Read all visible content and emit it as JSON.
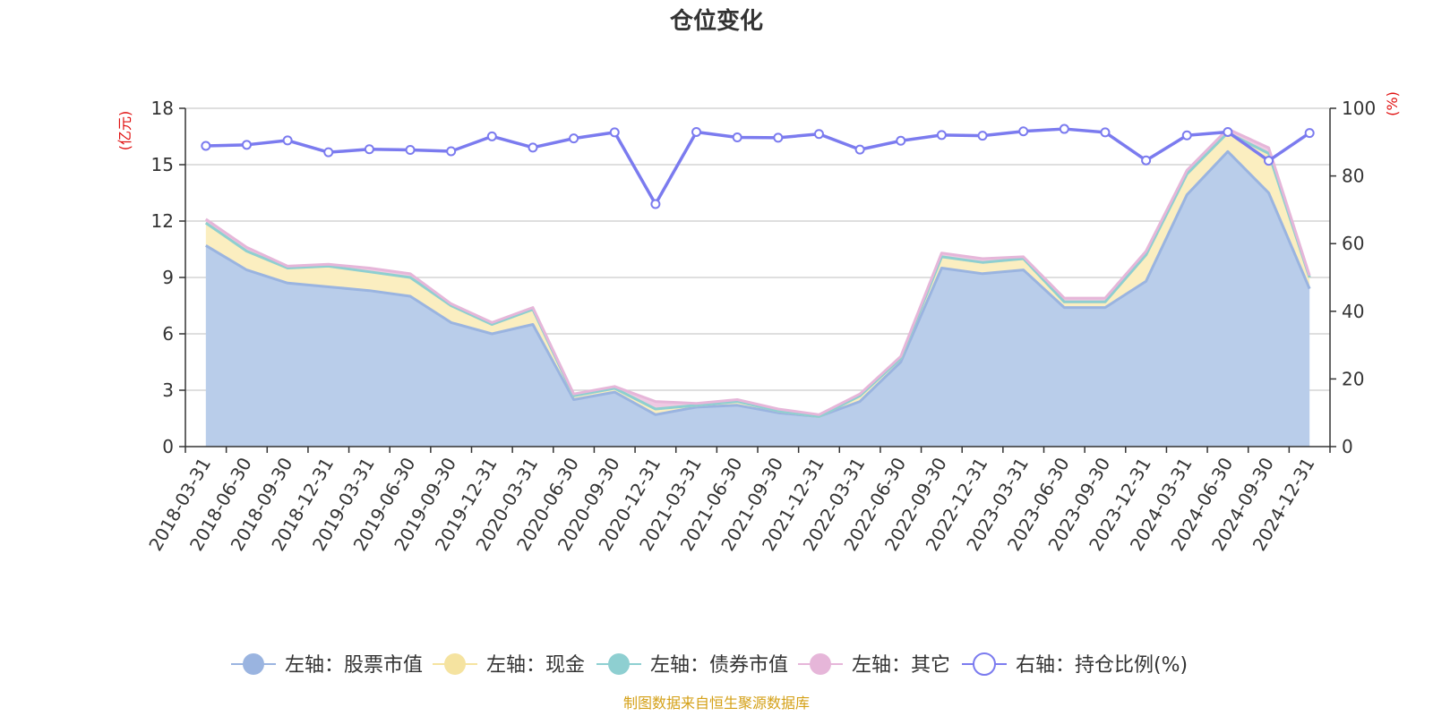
{
  "chart_data": {
    "type": "area",
    "title": "仓位变化",
    "source": "制图数据来自恒生聚源数据库",
    "left_axis": {
      "unit": "(亿元)",
      "ticks": [
        0,
        3,
        6,
        9,
        12,
        15,
        18
      ],
      "range": [
        0,
        18
      ]
    },
    "right_axis": {
      "unit": "(%)",
      "ticks": [
        0,
        20,
        40,
        60,
        80,
        100
      ],
      "range": [
        0,
        100
      ]
    },
    "categories": [
      "2018-03-31",
      "2018-06-30",
      "2018-09-30",
      "2018-12-31",
      "2019-03-31",
      "2019-06-30",
      "2019-09-30",
      "2019-12-31",
      "2020-03-31",
      "2020-06-30",
      "2020-09-30",
      "2020-12-31",
      "2021-03-31",
      "2021-06-30",
      "2021-09-30",
      "2021-12-31",
      "2022-03-31",
      "2022-06-30",
      "2022-09-30",
      "2022-12-31",
      "2023-03-31",
      "2023-06-30",
      "2023-09-30",
      "2023-12-31",
      "2024-03-31",
      "2024-06-30",
      "2024-09-30",
      "2024-12-31"
    ],
    "series": [
      {
        "name": "左轴：股票市值",
        "axis": "left",
        "type": "area",
        "color": "#9ab4e0",
        "fill": "#b9cdea",
        "values": [
          10.7,
          9.4,
          8.7,
          8.5,
          8.3,
          8.0,
          6.6,
          6.0,
          6.5,
          2.5,
          2.9,
          1.7,
          2.1,
          2.2,
          1.8,
          1.6,
          2.4,
          4.5,
          9.5,
          9.2,
          9.4,
          7.4,
          7.4,
          8.8,
          13.4,
          15.7,
          13.5,
          8.4
        ]
      },
      {
        "name": "左轴：现金",
        "axis": "left",
        "type": "area",
        "color": "#f5e3a0",
        "fill": "#fbeec0",
        "values": [
          1.2,
          1.0,
          0.8,
          1.1,
          1.0,
          1.0,
          0.9,
          0.5,
          0.8,
          0.2,
          0.2,
          0.3,
          0.1,
          0.2,
          0.1,
          0.0,
          0.3,
          0.2,
          0.6,
          0.6,
          0.6,
          0.3,
          0.3,
          1.4,
          1.1,
          1.0,
          2.1,
          0.6
        ]
      },
      {
        "name": "左轴：债券市值",
        "axis": "left",
        "type": "area",
        "color": "#8ecfd1",
        "fill": "#a8dcdd",
        "values": [
          0,
          0,
          0,
          0,
          0,
          0,
          0,
          0,
          0,
          0,
          0,
          0,
          0,
          0,
          0,
          0,
          0,
          0,
          0,
          0,
          0,
          0,
          0,
          0,
          0,
          0,
          0,
          0
        ]
      },
      {
        "name": "左轴：其它",
        "axis": "left",
        "type": "area",
        "color": "#e6b6d9",
        "fill": "#efc9e3",
        "values": [
          0.2,
          0.2,
          0.1,
          0.1,
          0.2,
          0.2,
          0.1,
          0.1,
          0.1,
          0.1,
          0.1,
          0.4,
          0.1,
          0.1,
          0.1,
          0.1,
          0.1,
          0.1,
          0.2,
          0.2,
          0.1,
          0.2,
          0.2,
          0.2,
          0.2,
          0.2,
          0.3,
          0.1
        ]
      },
      {
        "name": "右轴：持仓比例(%)",
        "axis": "right",
        "type": "line",
        "color": "#7b7bef",
        "values": [
          88.9,
          89.2,
          90.5,
          87.0,
          87.9,
          87.7,
          87.3,
          91.7,
          88.4,
          91.1,
          92.9,
          71.7,
          93.0,
          91.4,
          91.3,
          92.4,
          87.8,
          90.4,
          92.1,
          91.9,
          93.2,
          93.9,
          92.9,
          84.6,
          92.0,
          93.0,
          84.5,
          92.7
        ]
      }
    ]
  }
}
